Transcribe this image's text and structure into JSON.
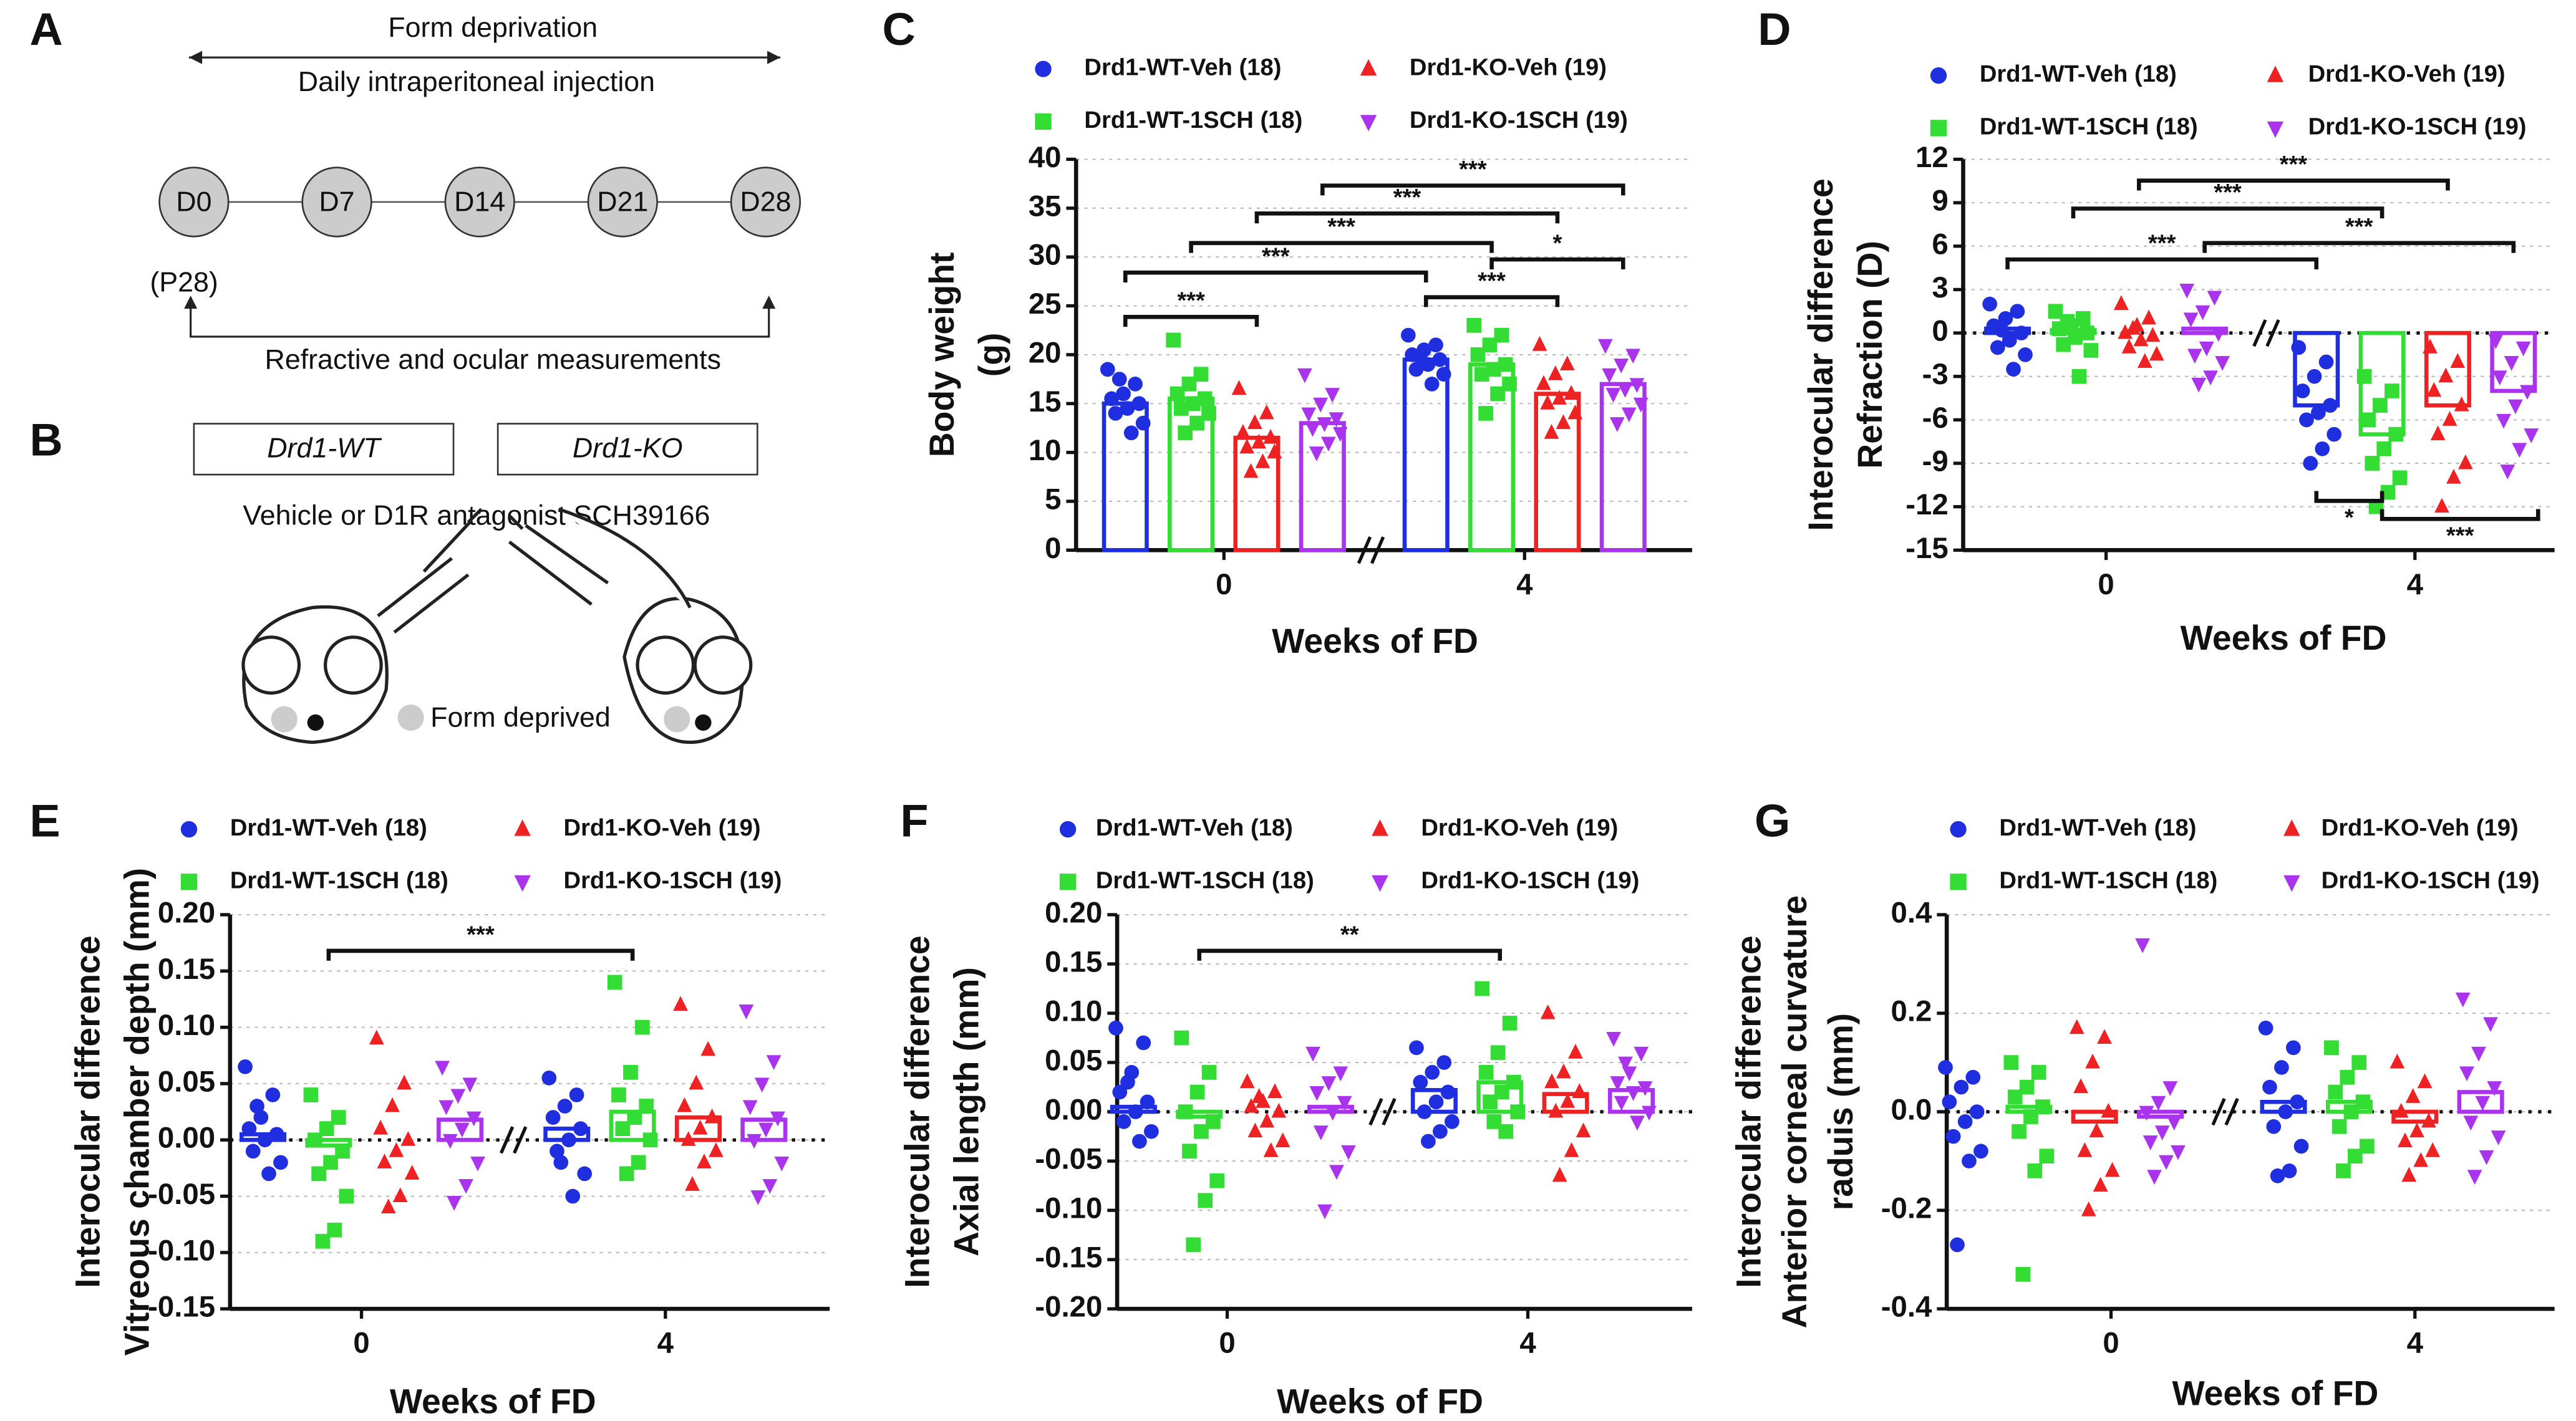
{
  "panel_labels": [
    "A",
    "B",
    "C",
    "D",
    "E",
    "F",
    "G"
  ],
  "schematic": {
    "top_text_1": "Form deprivation",
    "top_text_2": "Daily intraperitoneal injection",
    "nodes": [
      "D0",
      "D7",
      "D14",
      "D21",
      "D28"
    ],
    "start_note": "(P28)",
    "bottom_text": "Refractive and ocular measurements",
    "box_1": "Drd1-WT",
    "box_2": "Drd1-KO",
    "treatment": "Vehicle or D1R antagonist SCH39166",
    "legend": "Form deprived"
  },
  "chart_data": [
    {
      "type": "bar",
      "ylabel": [
        "Body weight",
        "(g)"
      ],
      "xlabel": "Weeks of FD",
      "categories": [
        "0",
        "4"
      ],
      "ylim": [
        0,
        40
      ],
      "yticks": [
        0,
        5,
        10,
        15,
        20,
        25,
        30,
        35,
        40
      ],
      "grid": true,
      "zero_line": false,
      "annotations": [
        "***",
        "***",
        "*",
        "***",
        "***",
        "***",
        "***"
      ],
      "series": [
        {
          "name": "Drd1-WT-Veh (18)",
          "color": "#1f2fe0",
          "marker": "circle",
          "values": [
            15,
            19.5
          ],
          "points": [
            [
              18.5,
              17,
              16,
              15.5,
              15,
              14.5,
              14,
              13,
              12,
              17.5
            ],
            [
              22,
              21,
              20.5,
              20,
              19.5,
              19,
              18.5,
              18,
              17,
              19.8
            ]
          ]
        },
        {
          "name": "Drd1-WT-1SCH (18)",
          "color": "#33dd33",
          "marker": "square",
          "values": [
            15.5,
            19
          ],
          "points": [
            [
              21.5,
              18,
              17,
              16,
              15.5,
              15,
              14.5,
              14,
              13,
              12
            ],
            [
              23,
              22,
              21,
              20,
              19,
              18.5,
              18,
              17,
              16,
              14
            ]
          ]
        },
        {
          "name": "Drd1-KO-Veh (19)",
          "color": "#ee2222",
          "marker": "triangle-up",
          "values": [
            11.5,
            16
          ],
          "points": [
            [
              16.5,
              14,
              13,
              12,
              11.5,
              11,
              10.5,
              10,
              9,
              8
            ],
            [
              21,
              19,
              18,
              17,
              16,
              15.5,
              15,
              14,
              13,
              12
            ]
          ]
        },
        {
          "name": "Drd1-KO-1SCH (19)",
          "color": "#aa33ee",
          "marker": "triangle-down",
          "values": [
            13,
            17
          ],
          "points": [
            [
              18,
              16,
              15,
              14,
              13.5,
              13,
              12.5,
              12,
              11,
              10
            ],
            [
              21,
              20,
              19,
              18,
              17,
              16.5,
              16,
              15,
              14,
              13
            ]
          ]
        }
      ]
    },
    {
      "type": "bar",
      "ylabel": [
        "Interocular difference",
        "Refraction (D)"
      ],
      "xlabel": "Weeks of FD",
      "categories": [
        "0",
        "4"
      ],
      "ylim": [
        -15,
        12
      ],
      "yticks": [
        -15,
        -12,
        -9,
        -6,
        -3,
        0,
        3,
        6,
        9,
        12
      ],
      "grid": true,
      "zero_line": true,
      "annotations": [
        "***",
        "***",
        "***",
        "***",
        "*",
        "***"
      ],
      "series": [
        {
          "name": "Drd1-WT-Veh (18)",
          "color": "#1f2fe0",
          "marker": "circle",
          "values": [
            0.3,
            -5
          ],
          "points": [
            [
              2,
              1.5,
              1,
              0.5,
              0,
              -0.5,
              -1,
              -1.5,
              -2.5,
              0.2
            ],
            [
              -1,
              -2,
              -3,
              -4,
              -5,
              -5.5,
              -6,
              -7,
              -8,
              -9
            ]
          ]
        },
        {
          "name": "Drd1-WT-1SCH (18)",
          "color": "#33dd33",
          "marker": "square",
          "values": [
            0.2,
            -7
          ],
          "points": [
            [
              1.5,
              1,
              0.5,
              0.3,
              0,
              -0.3,
              -0.8,
              -1.2,
              -3,
              0.8
            ],
            [
              -3,
              -4,
              -5,
              -6,
              -7,
              -8,
              -9,
              -10,
              -11,
              -12
            ]
          ]
        },
        {
          "name": "Drd1-KO-Veh (19)",
          "color": "#ee2222",
          "marker": "triangle-up",
          "values": [
            0,
            -5
          ],
          "points": [
            [
              2,
              1,
              0.5,
              0,
              -0.2,
              -0.5,
              -1,
              -1.5,
              -2,
              0.3
            ],
            [
              -1,
              -2,
              -3,
              -4,
              -5,
              -6,
              -7,
              -9,
              -10,
              -12
            ]
          ]
        },
        {
          "name": "Drd1-KO-1SCH (19)",
          "color": "#aa33ee",
          "marker": "triangle-down",
          "values": [
            0.3,
            -4
          ],
          "points": [
            [
              3,
              2.5,
              1.5,
              1,
              0,
              -1,
              -1.5,
              -2,
              -3,
              -3.5
            ],
            [
              -0.5,
              -1,
              -2,
              -3,
              -4,
              -5,
              -6,
              -7,
              -8,
              -9.5
            ]
          ]
        }
      ]
    },
    {
      "type": "bar",
      "ylabel": [
        "Interocular difference",
        "Vitreous chamber depth (mm)"
      ],
      "xlabel": "Weeks of FD",
      "categories": [
        "0",
        "4"
      ],
      "ylim": [
        -0.15,
        0.2
      ],
      "yticks": [
        -0.15,
        {
          "value": -0.1,
          "label": "-0.10"
        },
        -0.05,
        {
          "value": 0,
          "label": "0.00"
        },
        0.05,
        {
          "value": 0.1,
          "label": "0.10"
        },
        0.15,
        {
          "value": 0.2,
          "label": "0.20"
        }
      ],
      "grid": true,
      "zero_line": true,
      "annotations": [
        "***"
      ],
      "series": [
        {
          "name": "Drd1-WT-Veh (18)",
          "color": "#1f2fe0",
          "marker": "circle",
          "values": [
            0.005,
            0.01
          ],
          "points": [
            [
              0.065,
              0.04,
              0.02,
              0.01,
              0.005,
              0,
              -0.01,
              -0.02,
              -0.03,
              0.03
            ],
            [
              0.055,
              0.04,
              0.03,
              0.02,
              0.01,
              0,
              -0.01,
              -0.03,
              -0.05,
              -0.02
            ]
          ]
        },
        {
          "name": "Drd1-WT-1SCH (18)",
          "color": "#33dd33",
          "marker": "square",
          "values": [
            -0.005,
            0.025
          ],
          "points": [
            [
              0.04,
              0.02,
              0.01,
              0,
              -0.01,
              -0.02,
              -0.03,
              -0.05,
              -0.08,
              -0.09
            ],
            [
              0.14,
              0.1,
              0.06,
              0.04,
              0.03,
              0.02,
              0.01,
              0,
              -0.02,
              -0.03
            ]
          ]
        },
        {
          "name": "Drd1-KO-Veh (19)",
          "color": "#ee2222",
          "marker": "triangle-up",
          "values": [
            0,
            0.02
          ],
          "points": [
            [
              0.09,
              0.05,
              0.03,
              0.01,
              0,
              -0.01,
              -0.02,
              -0.03,
              -0.05,
              -0.06
            ],
            [
              0.12,
              0.08,
              0.05,
              0.03,
              0.02,
              0.01,
              0,
              -0.01,
              -0.02,
              -0.04
            ]
          ]
        },
        {
          "name": "Drd1-KO-1SCH (19)",
          "color": "#aa33ee",
          "marker": "triangle-down",
          "values": [
            0.018,
            0.018
          ],
          "points": [
            [
              0.065,
              0.05,
              0.04,
              0.03,
              0.02,
              0.01,
              0,
              -0.02,
              -0.04,
              -0.055
            ],
            [
              0.115,
              0.07,
              0.05,
              0.03,
              0.02,
              0.01,
              0,
              -0.02,
              -0.04,
              -0.05
            ]
          ]
        }
      ]
    },
    {
      "type": "bar",
      "ylabel": [
        "Interocular difference",
        "Axial length (mm)"
      ],
      "xlabel": "Weeks of FD",
      "categories": [
        "0",
        "4"
      ],
      "ylim": [
        -0.2,
        0.2
      ],
      "yticks": [
        {
          "value": -0.2,
          "label": "-0.20"
        },
        -0.15,
        {
          "value": -0.1,
          "label": "-0.10"
        },
        -0.05,
        {
          "value": 0,
          "label": "0.00"
        },
        0.05,
        {
          "value": 0.1,
          "label": "0.10"
        },
        0.15,
        {
          "value": 0.2,
          "label": "0.20"
        }
      ],
      "grid": true,
      "zero_line": true,
      "annotations": [
        "**"
      ],
      "series": [
        {
          "name": "Drd1-WT-Veh (18)",
          "color": "#1f2fe0",
          "marker": "circle",
          "values": [
            0.005,
            0.022
          ],
          "points": [
            [
              0.085,
              0.07,
              0.04,
              0.02,
              0.01,
              0,
              -0.01,
              -0.02,
              -0.03,
              0.03
            ],
            [
              0.065,
              0.05,
              0.04,
              0.03,
              0.02,
              0.01,
              0,
              -0.01,
              -0.02,
              -0.03
            ]
          ]
        },
        {
          "name": "Drd1-WT-1SCH (18)",
          "color": "#33dd33",
          "marker": "square",
          "values": [
            -0.005,
            0.03
          ],
          "points": [
            [
              0.075,
              0.04,
              0.02,
              0,
              -0.01,
              -0.02,
              -0.04,
              -0.07,
              -0.09,
              -0.135
            ],
            [
              0.125,
              0.09,
              0.06,
              0.04,
              0.03,
              0.02,
              0.01,
              0,
              -0.02,
              -0.01
            ]
          ]
        },
        {
          "name": "Drd1-KO-Veh (19)",
          "color": "#ee2222",
          "marker": "triangle-up",
          "values": [
            0,
            0.018
          ],
          "points": [
            [
              0.03,
              0.02,
              0.01,
              0.005,
              0,
              -0.01,
              -0.02,
              -0.03,
              -0.04,
              0.015
            ],
            [
              0.1,
              0.06,
              0.04,
              0.03,
              0.02,
              0.01,
              0,
              -0.02,
              -0.04,
              -0.065
            ]
          ]
        },
        {
          "name": "Drd1-KO-1SCH (19)",
          "color": "#aa33ee",
          "marker": "triangle-down",
          "values": [
            0.005,
            0.022
          ],
          "points": [
            [
              0.06,
              0.04,
              0.03,
              0.02,
              0.01,
              0,
              -0.02,
              -0.04,
              -0.06,
              -0.1
            ],
            [
              0.075,
              0.06,
              0.04,
              0.03,
              0.025,
              0.02,
              0.01,
              0,
              -0.01,
              0.05
            ]
          ]
        }
      ]
    },
    {
      "type": "bar",
      "ylabel": [
        "Interocular difference",
        "Anterior corneal curvature",
        "raduis (mm)"
      ],
      "xlabel": "Weeks of FD",
      "categories": [
        "0",
        "4"
      ],
      "ylim": [
        -0.4,
        0.4
      ],
      "yticks": [
        -0.4,
        -0.2,
        {
          "value": 0,
          "label": "0.0"
        },
        0.2,
        0.4
      ],
      "grid": true,
      "zero_line": true,
      "annotations": [],
      "series": [
        {
          "name": "Drd1-WT-Veh (18)",
          "color": "#1f2fe0",
          "marker": "circle",
          "values": [
            0,
            0.02
          ],
          "points": [
            [
              0.09,
              0.07,
              0.05,
              0.02,
              0,
              -0.02,
              -0.05,
              -0.08,
              -0.1,
              -0.27
            ],
            [
              0.17,
              0.13,
              0.09,
              0.05,
              0.02,
              0,
              -0.03,
              -0.07,
              -0.12,
              -0.13
            ]
          ]
        },
        {
          "name": "Drd1-WT-1SCH (18)",
          "color": "#33dd33",
          "marker": "square",
          "values": [
            0.01,
            0.02
          ],
          "points": [
            [
              0.1,
              0.08,
              0.05,
              0.03,
              0.01,
              -0.01,
              -0.04,
              -0.09,
              -0.12,
              -0.33
            ],
            [
              0.13,
              0.1,
              0.07,
              0.04,
              0.02,
              0,
              -0.03,
              -0.07,
              -0.09,
              -0.12
            ]
          ]
        },
        {
          "name": "Drd1-KO-Veh (19)",
          "color": "#ee2222",
          "marker": "triangle-up",
          "values": [
            -0.02,
            -0.02
          ],
          "points": [
            [
              0.17,
              0.15,
              0.1,
              0.05,
              0,
              -0.04,
              -0.08,
              -0.12,
              -0.15,
              -0.2
            ],
            [
              0.1,
              0.06,
              0.03,
              0,
              -0.02,
              -0.04,
              -0.06,
              -0.08,
              -0.1,
              -0.13
            ]
          ]
        },
        {
          "name": "Drd1-KO-1SCH (19)",
          "color": "#aa33ee",
          "marker": "triangle-down",
          "values": [
            -0.01,
            0.04
          ],
          "points": [
            [
              0.34,
              0.05,
              0.02,
              0,
              -0.02,
              -0.04,
              -0.06,
              -0.08,
              -0.1,
              -0.13
            ],
            [
              0.23,
              0.18,
              0.12,
              0.08,
              0.05,
              0.02,
              -0.02,
              -0.05,
              -0.09,
              -0.13
            ]
          ]
        }
      ]
    }
  ]
}
